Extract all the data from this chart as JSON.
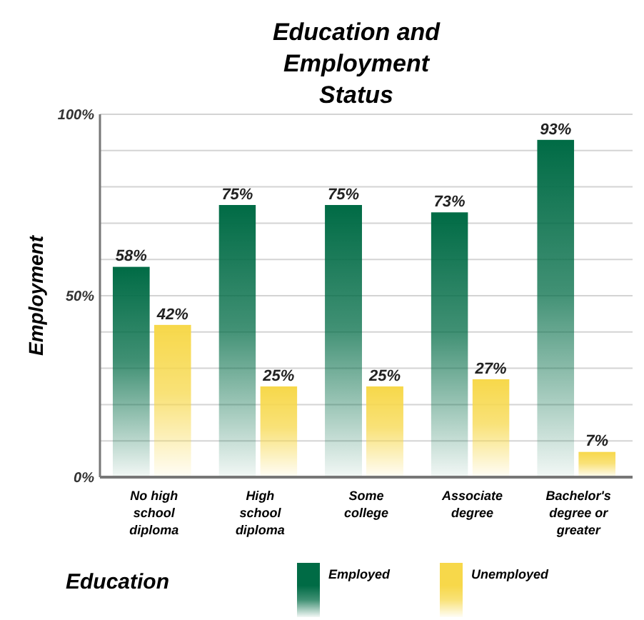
{
  "chart_data": {
    "type": "bar",
    "title": "Education and Employment Status",
    "xlabel": "Education",
    "ylabel": "Employment",
    "categories": [
      "No high school diploma",
      "High school diploma",
      "Some college",
      "Associate degree",
      "Bachelor's degree or greater"
    ],
    "series": [
      {
        "name": "Employed",
        "color": "#006b45",
        "values": [
          58,
          75,
          75,
          73,
          93
        ],
        "value_labels": [
          "58%",
          "75%",
          "75%",
          "73%",
          "93%"
        ]
      },
      {
        "name": "Unemployed",
        "color": "#f7d84a",
        "values": [
          42,
          25,
          25,
          27,
          7
        ],
        "value_labels": [
          "42%",
          "25%",
          "25%",
          "27%",
          "7%"
        ]
      }
    ],
    "ylim": [
      0,
      100
    ],
    "yticks": [
      {
        "value": 0,
        "label": "0%"
      },
      {
        "value": 10,
        "label": null
      },
      {
        "value": 20,
        "label": null
      },
      {
        "value": 30,
        "label": null
      },
      {
        "value": 40,
        "label": null
      },
      {
        "value": 50,
        "label": "50%"
      },
      {
        "value": 60,
        "label": null
      },
      {
        "value": 70,
        "label": null
      },
      {
        "value": 80,
        "label": null
      },
      {
        "value": 90,
        "label": null
      },
      {
        "value": 100,
        "label": "100%"
      }
    ],
    "grid": "y",
    "legend": "bottom"
  }
}
